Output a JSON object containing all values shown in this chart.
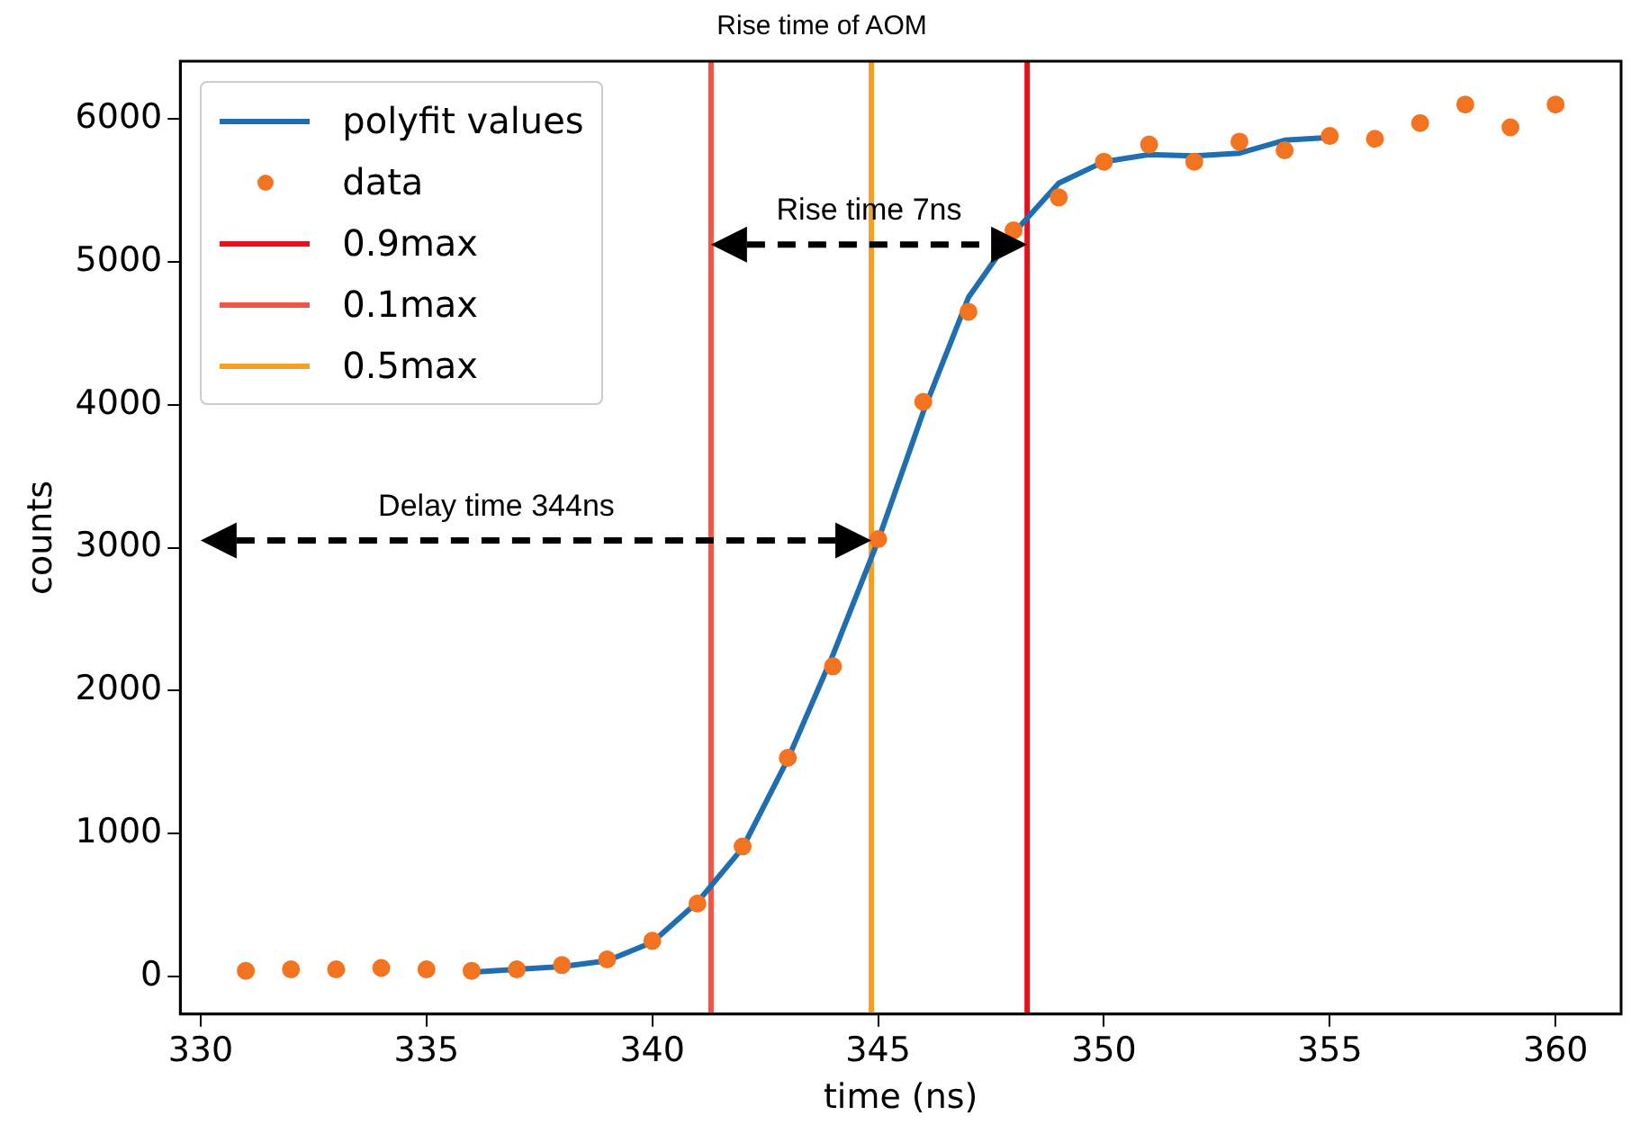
{
  "chart_data": {
    "type": "scatter",
    "title": "Rise time of AOM",
    "xlabel": "time (ns)",
    "ylabel": "counts",
    "xlim": [
      329.55,
      361.45
    ],
    "xticks": [
      330,
      335,
      340,
      345,
      350,
      355,
      360
    ],
    "ylim": [
      -263,
      6403
    ],
    "yticks": [
      0,
      1000,
      2000,
      3000,
      4000,
      5000,
      6000
    ],
    "grid": false,
    "legend": "top left",
    "series": [
      {
        "name": "polyfit values",
        "type": "line",
        "color": "#1f6fb0",
        "marker": "none",
        "line_style": "solid",
        "x": [
          336,
          337,
          338,
          339,
          340,
          341,
          342,
          343,
          344,
          345,
          346,
          347,
          348,
          349,
          350,
          351,
          352,
          353,
          354,
          355
        ],
        "values": [
          30,
          50,
          70,
          110,
          240,
          520,
          900,
          1520,
          2250,
          3050,
          3950,
          4750,
          5200,
          5550,
          5700,
          5750,
          5740,
          5760,
          5850,
          5870
        ]
      },
      {
        "name": "data",
        "type": "scatter",
        "color": "#f27420",
        "marker": "circle",
        "x": [
          331,
          332,
          333,
          334,
          335,
          336,
          337,
          338,
          339,
          340,
          341,
          342,
          343,
          344,
          345,
          346,
          347,
          348,
          349,
          350,
          351,
          352,
          353,
          354,
          355,
          356,
          357,
          358,
          359,
          360
        ],
        "values": [
          40,
          50,
          50,
          60,
          50,
          40,
          50,
          80,
          120,
          250,
          510,
          910,
          1530,
          2170,
          3060,
          4020,
          4650,
          5220,
          5450,
          5700,
          5820,
          5700,
          5840,
          5780,
          5880,
          5860,
          5970,
          6100,
          5940,
          6100
        ]
      },
      {
        "name": "0.9max",
        "type": "line",
        "color": "#e8101a",
        "marker": "none",
        "line_style": "solid",
        "x": [
          348.3,
          348.3
        ],
        "values": [
          -263,
          6403
        ]
      },
      {
        "name": "0.1max",
        "type": "line",
        "color": "#f05545",
        "marker": "none",
        "line_style": "solid",
        "x": [
          341.3,
          341.3
        ],
        "values": [
          -263,
          6403
        ]
      },
      {
        "name": "0.5max",
        "type": "line",
        "color": "#f5a020",
        "marker": "none",
        "line_style": "solid",
        "x": [
          344.85,
          344.85
        ],
        "values": [
          -263,
          6403
        ]
      }
    ],
    "annotations": [
      "Delay time 344ns",
      {
        "text": "Rise time 7ns",
        "x": 348.3,
        "y": 5120
      }
    ]
  }
}
